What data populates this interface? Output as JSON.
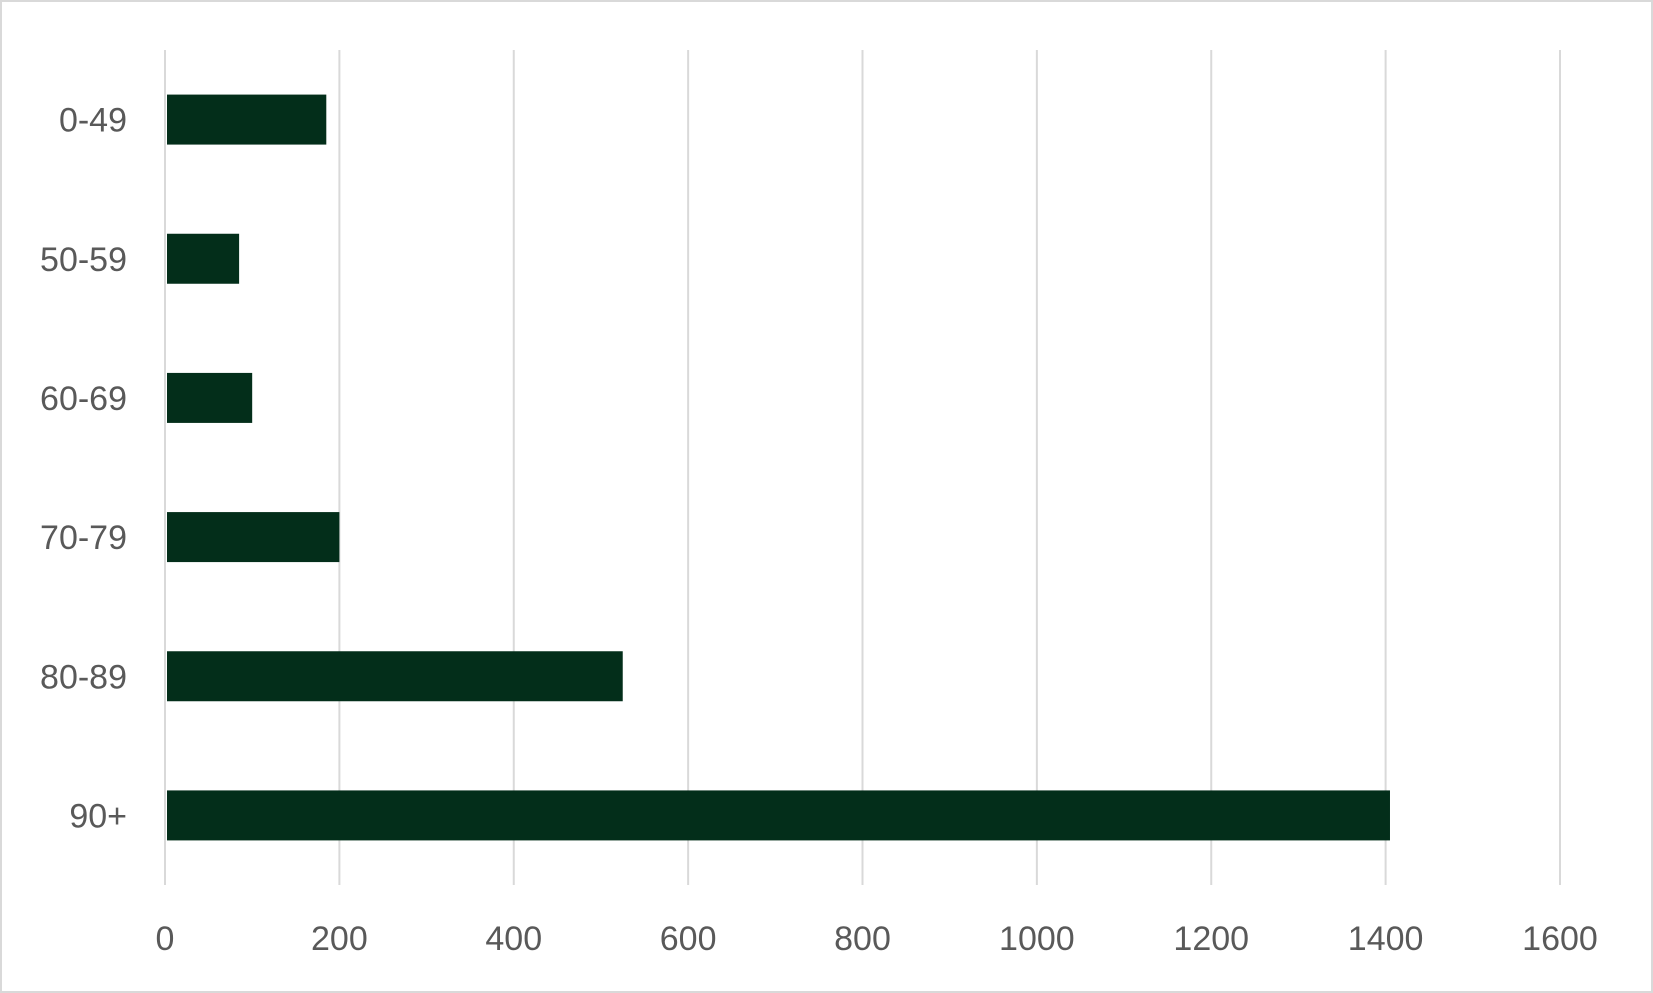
{
  "chart_data": {
    "type": "bar",
    "orientation": "horizontal",
    "title": "",
    "xlabel": "",
    "ylabel": "",
    "categories": [
      "0-49",
      "50-59",
      "60-69",
      "70-79",
      "80-89",
      "90+"
    ],
    "values": [
      185,
      85,
      100,
      200,
      525,
      1405
    ],
    "xlim": [
      0,
      1600
    ],
    "x_ticks": [
      0,
      200,
      400,
      600,
      800,
      1000,
      1200,
      1400,
      1600
    ],
    "grid": "vertical",
    "legend": "none",
    "colors": {
      "bar": "#032e1a",
      "grid": "#d9d9d9",
      "axis_line": "#d9d9d9",
      "tick_text": "#595959",
      "frame": "#d9d9d9",
      "background": "#ffffff"
    }
  }
}
